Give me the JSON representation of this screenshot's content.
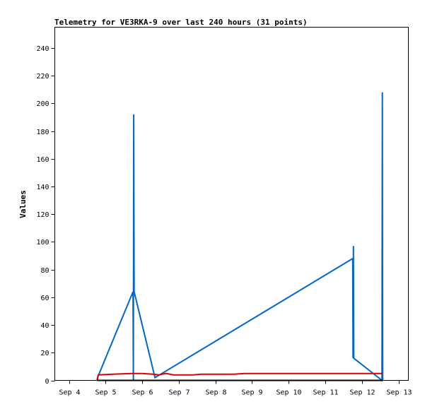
{
  "chart_data": {
    "type": "line",
    "title": "Telemetry for VE3RKA-9 over last 240 hours (31 points)",
    "xlabel": "",
    "ylabel": "Values",
    "ylim": [
      0,
      255
    ],
    "yticks": [
      0,
      20,
      40,
      60,
      80,
      100,
      120,
      140,
      160,
      180,
      200,
      220,
      240
    ],
    "xlim": [
      0,
      9
    ],
    "xticks": [
      {
        "x": 0,
        "label": "Sep 4"
      },
      {
        "x": 1,
        "label": "Sep 5"
      },
      {
        "x": 2,
        "label": "Sep 6"
      },
      {
        "x": 3,
        "label": "Sep 7"
      },
      {
        "x": 4,
        "label": "Sep 8"
      },
      {
        "x": 5,
        "label": "Sep 9"
      },
      {
        "x": 6,
        "label": "Sep 10"
      },
      {
        "x": 7,
        "label": "Sep 11"
      },
      {
        "x": 8,
        "label": "Sep 12"
      },
      {
        "x": 9,
        "label": "Sep 13"
      }
    ],
    "grid": false,
    "series": [
      {
        "color": "#0066cc",
        "points": [
          [
            0.77,
            0
          ],
          [
            0.78,
            2
          ],
          [
            1.75,
            64
          ],
          [
            1.76,
            0
          ],
          [
            1.77,
            192
          ],
          [
            1.78,
            64
          ],
          [
            2.35,
            2
          ],
          [
            7.75,
            88
          ],
          [
            7.76,
            16
          ],
          [
            7.77,
            97
          ],
          [
            7.78,
            16
          ],
          [
            8.55,
            0
          ],
          [
            8.56,
            208
          ],
          [
            8.57,
            0
          ]
        ]
      },
      {
        "color": "#dd0000",
        "points": [
          [
            0.77,
            0
          ],
          [
            0.8,
            4
          ],
          [
            1.2,
            4.5
          ],
          [
            1.7,
            5
          ],
          [
            2.0,
            5
          ],
          [
            2.3,
            4.5
          ],
          [
            2.45,
            4
          ],
          [
            2.65,
            5
          ],
          [
            2.85,
            4
          ],
          [
            3.4,
            4
          ],
          [
            3.6,
            4.5
          ],
          [
            4.5,
            4.5
          ],
          [
            4.8,
            5
          ],
          [
            8.0,
            5
          ],
          [
            8.55,
            5
          ]
        ]
      },
      {
        "color": "#000000",
        "points": [
          [
            0.77,
            0
          ],
          [
            8.57,
            0
          ]
        ]
      }
    ]
  }
}
